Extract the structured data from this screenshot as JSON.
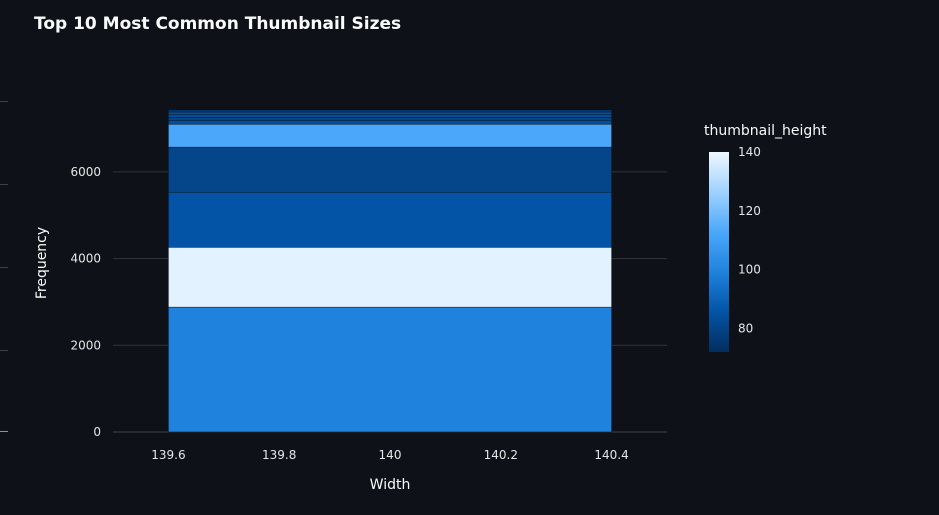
{
  "chart_data": {
    "type": "bar",
    "title": "Top 10 Most Common Thumbnail Sizes",
    "xlabel": "Width",
    "ylabel": "Frequency",
    "xlim": [
      139.5,
      140.5
    ],
    "ylim": [
      0,
      7450
    ],
    "x_ticks": [
      "139.6",
      "139.8",
      "140",
      "140.2",
      "140.4"
    ],
    "x_tick_values": [
      139.6,
      139.8,
      140,
      140.2,
      140.4
    ],
    "y_ticks": [
      "0",
      "2000",
      "4000",
      "6000"
    ],
    "y_tick_values": [
      0,
      2000,
      4000,
      6000
    ],
    "bar_x": 140,
    "bar_width": 0.8,
    "segments": [
      {
        "height": 96,
        "count": 2880,
        "color": "#1f82dd"
      },
      {
        "height": 140,
        "count": 1380,
        "color": "#e2f3ff"
      },
      {
        "height": 80,
        "count": 1270,
        "color": "#0354a6"
      },
      {
        "height": 76,
        "count": 1040,
        "color": "#044689"
      },
      {
        "height": 110,
        "count": 530,
        "color": "#4ba7fa"
      },
      {
        "height": 78,
        "count": 90,
        "color": "#044e9b"
      },
      {
        "height": 76,
        "count": 70,
        "color": "#044689"
      },
      {
        "height": 78,
        "count": 60,
        "color": "#044e9b"
      },
      {
        "height": 80,
        "count": 60,
        "color": "#0354a6"
      },
      {
        "height": 72,
        "count": 50,
        "color": "#033c7a"
      }
    ],
    "colorbar": {
      "title": "thumbnail_height",
      "range": [
        72,
        140
      ],
      "ticks": [
        "80",
        "100",
        "120",
        "140"
      ],
      "tick_values": [
        80,
        100,
        120,
        140
      ],
      "colors": [
        "#032e5e",
        "#0354a6",
        "#1f82dd",
        "#4ba7fa",
        "#9fd2ff",
        "#eef8ff"
      ]
    },
    "grid": true,
    "legend": "right"
  }
}
